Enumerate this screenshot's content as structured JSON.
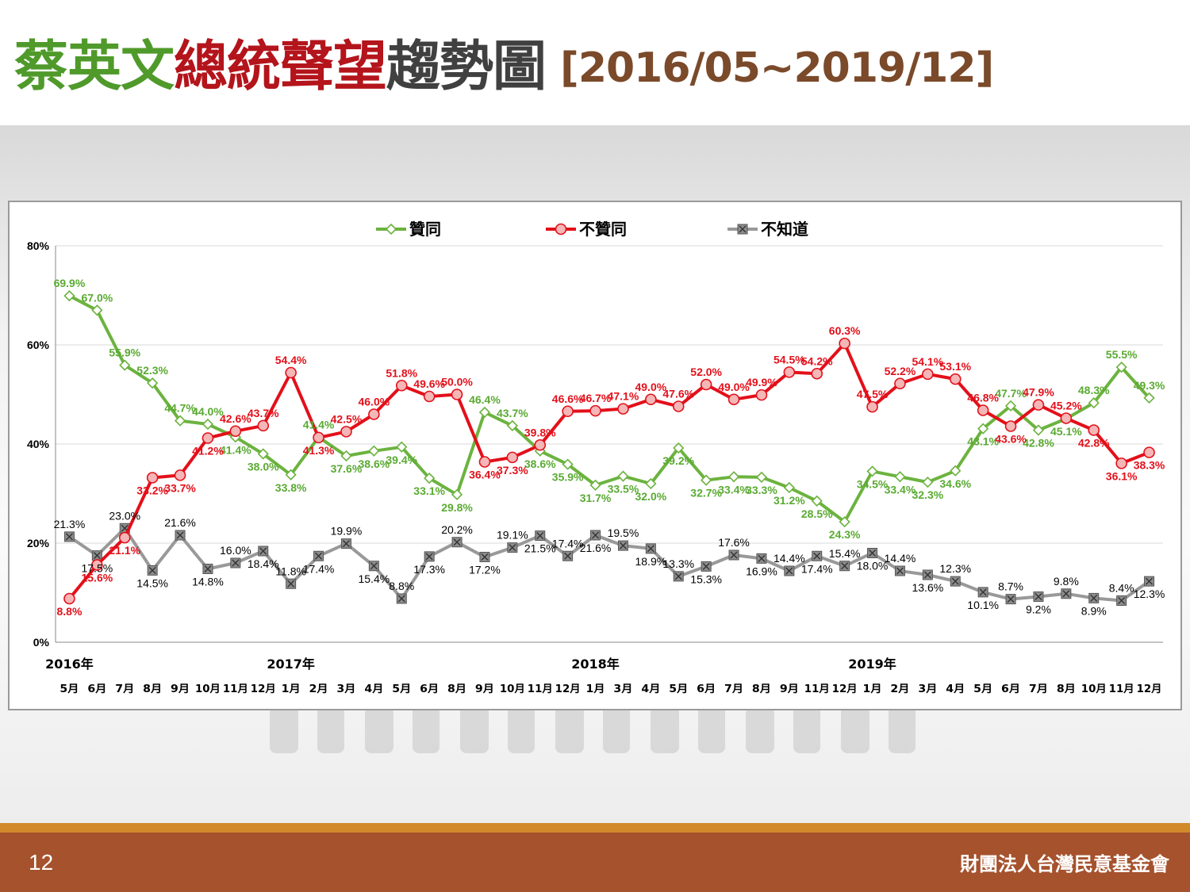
{
  "title": {
    "part1": "蔡英文",
    "part2": "總統聲望",
    "part3": "趨勢圖",
    "range": "[2016/05~2019/12]"
  },
  "footer": {
    "page": "12",
    "org": "財團法人台灣民意基金會"
  },
  "colors": {
    "approve": "#6cb33f",
    "approve_label": "#5aaa32",
    "disapprove": "#e3101a",
    "disapprove_marker": "#f4b6b6",
    "dontknow": "#999999",
    "dontknow_label": "#000000"
  },
  "chart_data": {
    "type": "line",
    "ylim": [
      0,
      80
    ],
    "yticks": [
      "0%",
      "20%",
      "40%",
      "60%",
      "80%"
    ],
    "legend_position": "top",
    "years": [
      {
        "label": "2016年",
        "index": 0
      },
      {
        "label": "2017年",
        "index": 8
      },
      {
        "label": "2018年",
        "index": 19
      },
      {
        "label": "2019年",
        "index": 29
      }
    ],
    "categories": [
      "5月",
      "6月",
      "7月",
      "8月",
      "9月",
      "10月",
      "11月",
      "12月",
      "1月",
      "2月",
      "3月",
      "4月",
      "5月",
      "6月",
      "8月",
      "9月",
      "10月",
      "11月",
      "12月",
      "1月",
      "3月",
      "4月",
      "5月",
      "6月",
      "7月",
      "8月",
      "9月",
      "11月",
      "12月",
      "1月",
      "2月",
      "3月",
      "4月",
      "5月",
      "6月",
      "7月",
      "8月",
      "10月",
      "11月",
      "12月"
    ],
    "series": [
      {
        "name": "贊同",
        "values": [
          69.9,
          67.0,
          55.9,
          52.3,
          44.7,
          44.0,
          41.4,
          38.0,
          33.8,
          41.4,
          37.6,
          38.6,
          39.4,
          33.1,
          29.8,
          46.4,
          43.7,
          38.6,
          35.9,
          31.7,
          33.5,
          32.0,
          39.2,
          32.7,
          33.4,
          33.3,
          31.2,
          28.5,
          24.3,
          34.5,
          33.4,
          32.3,
          34.6,
          43.1,
          47.7,
          42.8,
          45.1,
          48.3,
          55.5,
          49.3
        ]
      },
      {
        "name": "不贊同",
        "values": [
          8.8,
          15.6,
          21.1,
          33.2,
          33.7,
          41.2,
          42.6,
          43.7,
          54.4,
          41.3,
          42.5,
          46.0,
          51.8,
          49.6,
          50.0,
          36.4,
          37.3,
          39.8,
          46.6,
          46.7,
          47.1,
          49.0,
          47.6,
          52.0,
          49.0,
          49.9,
          54.5,
          54.2,
          60.3,
          47.5,
          52.2,
          54.1,
          53.1,
          46.8,
          43.6,
          47.9,
          45.2,
          42.8,
          36.1,
          38.3
        ]
      },
      {
        "name": "不知道",
        "values": [
          21.3,
          17.5,
          23.0,
          14.5,
          21.6,
          14.8,
          16.0,
          18.4,
          11.8,
          17.4,
          19.9,
          15.4,
          8.8,
          17.3,
          20.2,
          17.2,
          19.1,
          21.5,
          17.4,
          21.6,
          19.5,
          18.9,
          13.3,
          15.3,
          17.6,
          16.9,
          14.4,
          17.4,
          15.4,
          18.0,
          14.4,
          13.6,
          12.3,
          10.1,
          8.7,
          9.2,
          9.8,
          8.9,
          8.4,
          12.3
        ]
      }
    ]
  }
}
